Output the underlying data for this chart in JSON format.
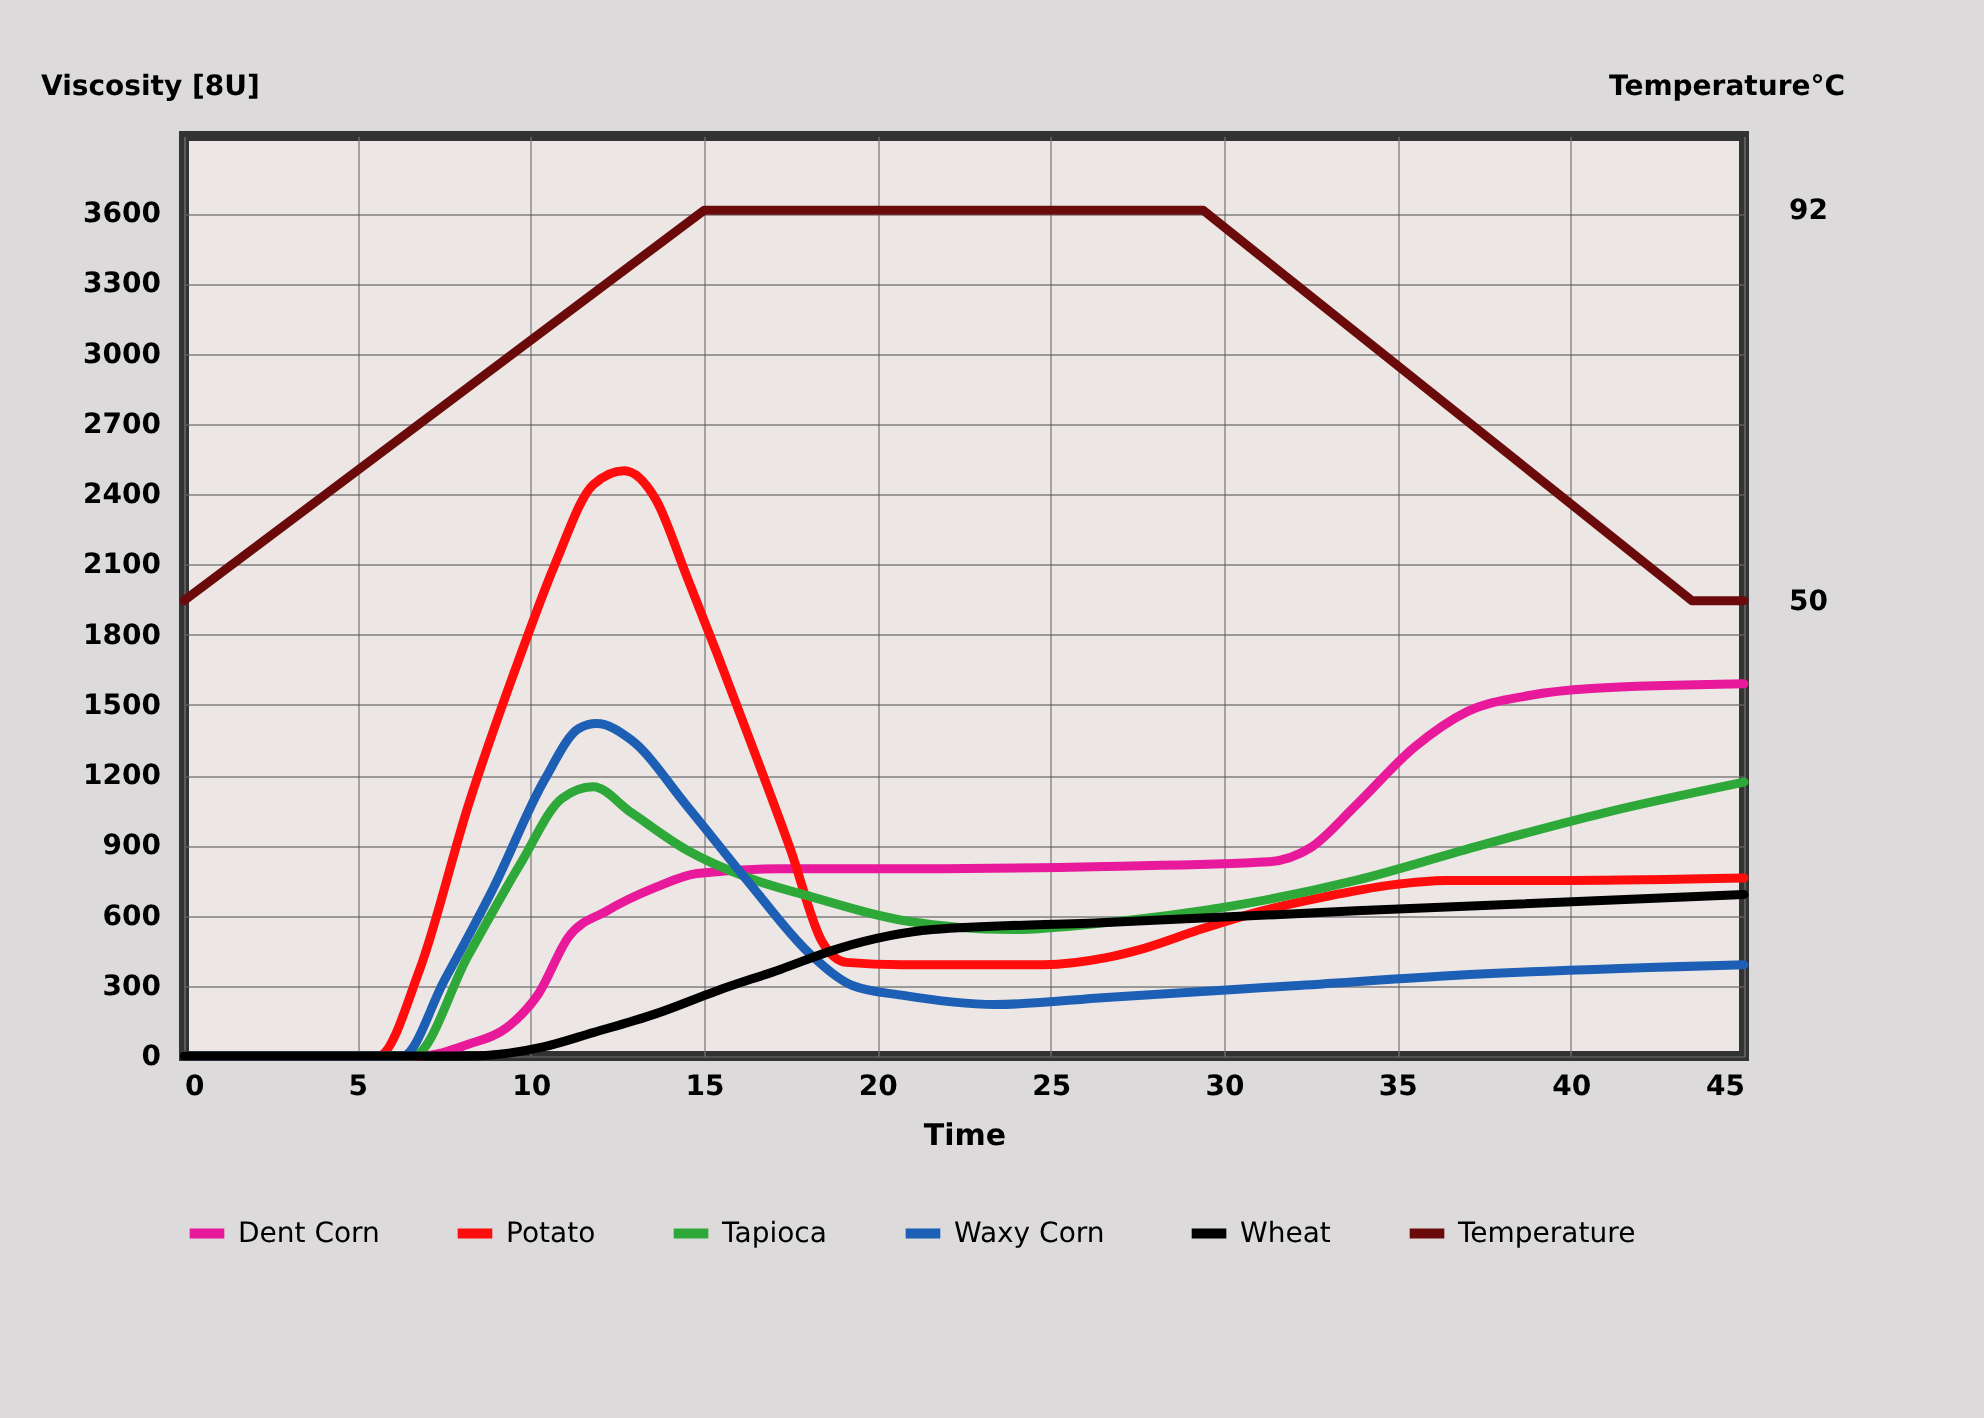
{
  "chart_data": {
    "type": "line",
    "xlabel": "Time",
    "ylabel": "Viscosity [8U]",
    "y2label": "Temperature°C",
    "xlim": [
      0,
      45
    ],
    "xticks": [
      0,
      5,
      10,
      15,
      20,
      25,
      30,
      35,
      40,
      45
    ],
    "ylim": [
      0,
      3930
    ],
    "yticks": [
      0,
      300,
      600,
      900,
      1200,
      1500,
      1800,
      2100,
      2400,
      2700,
      3000,
      3300,
      3600
    ],
    "y2lim": [
      1,
      100
    ],
    "y2ticks": [
      50,
      92
    ],
    "grid": true,
    "legend": "bottom",
    "marker": "none",
    "line_style": "solid",
    "series": [
      {
        "name": "Dent Corn",
        "color": "#e8199a",
        "x": [
          0,
          6.8,
          8.2,
          9.3,
          10.2,
          11.1,
          12.2,
          13.6,
          14.8,
          17.2,
          21.3,
          26.6,
          31.3,
          32.5,
          33.8,
          35.5,
          37.0,
          38.8,
          40.6,
          45
        ],
        "values": [
          0,
          0,
          50,
          120,
          260,
          510,
          620,
          720,
          780,
          800,
          800,
          810,
          830,
          890,
          1070,
          1320,
          1470,
          1540,
          1570,
          1590
        ]
      },
      {
        "name": "Potato",
        "color": "#ff0d0d",
        "x": [
          0,
          5.6,
          6.8,
          8.2,
          9.7,
          10.7,
          11.8,
          12.7,
          13.6,
          14.5,
          15.4,
          16.4,
          17.5,
          18.4,
          19.1,
          20.7,
          24.8,
          26.6,
          27.7,
          29.3,
          31.1,
          32.9,
          34.8,
          36.4,
          40.0,
          45
        ],
        "values": [
          0,
          0,
          370,
          1070,
          1710,
          2100,
          2440,
          2500,
          2380,
          2050,
          1710,
          1320,
          880,
          490,
          400,
          390,
          390,
          420,
          460,
          540,
          620,
          680,
          730,
          750,
          750,
          760
        ]
      },
      {
        "name": "Tapioca",
        "color": "#2fa83a",
        "x": [
          0,
          6.6,
          8.2,
          9.7,
          10.9,
          11.8,
          12.9,
          14.5,
          16.3,
          18.1,
          20.7,
          23.9,
          26.6,
          30.2,
          33.8,
          37.4,
          41,
          45
        ],
        "values": [
          0,
          0,
          430,
          820,
          1100,
          1150,
          1040,
          880,
          760,
          680,
          580,
          540,
          570,
          640,
          750,
          900,
          1040,
          1170
        ]
      },
      {
        "name": "Waxy  Corn",
        "color": "#1d5fb5",
        "x": [
          0,
          6.3,
          7.5,
          8.9,
          10.4,
          11.4,
          11.9,
          12.9,
          14.5,
          16.3,
          18.1,
          19.3,
          20.7,
          23.4,
          26.6,
          32,
          37.4,
          45
        ],
        "values": [
          0,
          0,
          320,
          710,
          1180,
          1400,
          1420,
          1350,
          1070,
          740,
          430,
          300,
          260,
          220,
          250,
          300,
          350,
          390
        ]
      },
      {
        "name": "Wheat",
        "color": "#000000",
        "x": [
          0,
          8.2,
          10.4,
          11.8,
          13.6,
          15.4,
          17.2,
          18.9,
          21.6,
          26.6,
          33.8,
          45
        ],
        "values": [
          0,
          0,
          40,
          100,
          180,
          280,
          370,
          460,
          540,
          570,
          620,
          690
        ]
      },
      {
        "name": "Temperature",
        "color": "#6b0a0a",
        "axis": "y2",
        "x": [
          0,
          15,
          29.4,
          43.5,
          45
        ],
        "values": [
          50,
          92,
          92,
          50,
          50
        ]
      }
    ]
  }
}
